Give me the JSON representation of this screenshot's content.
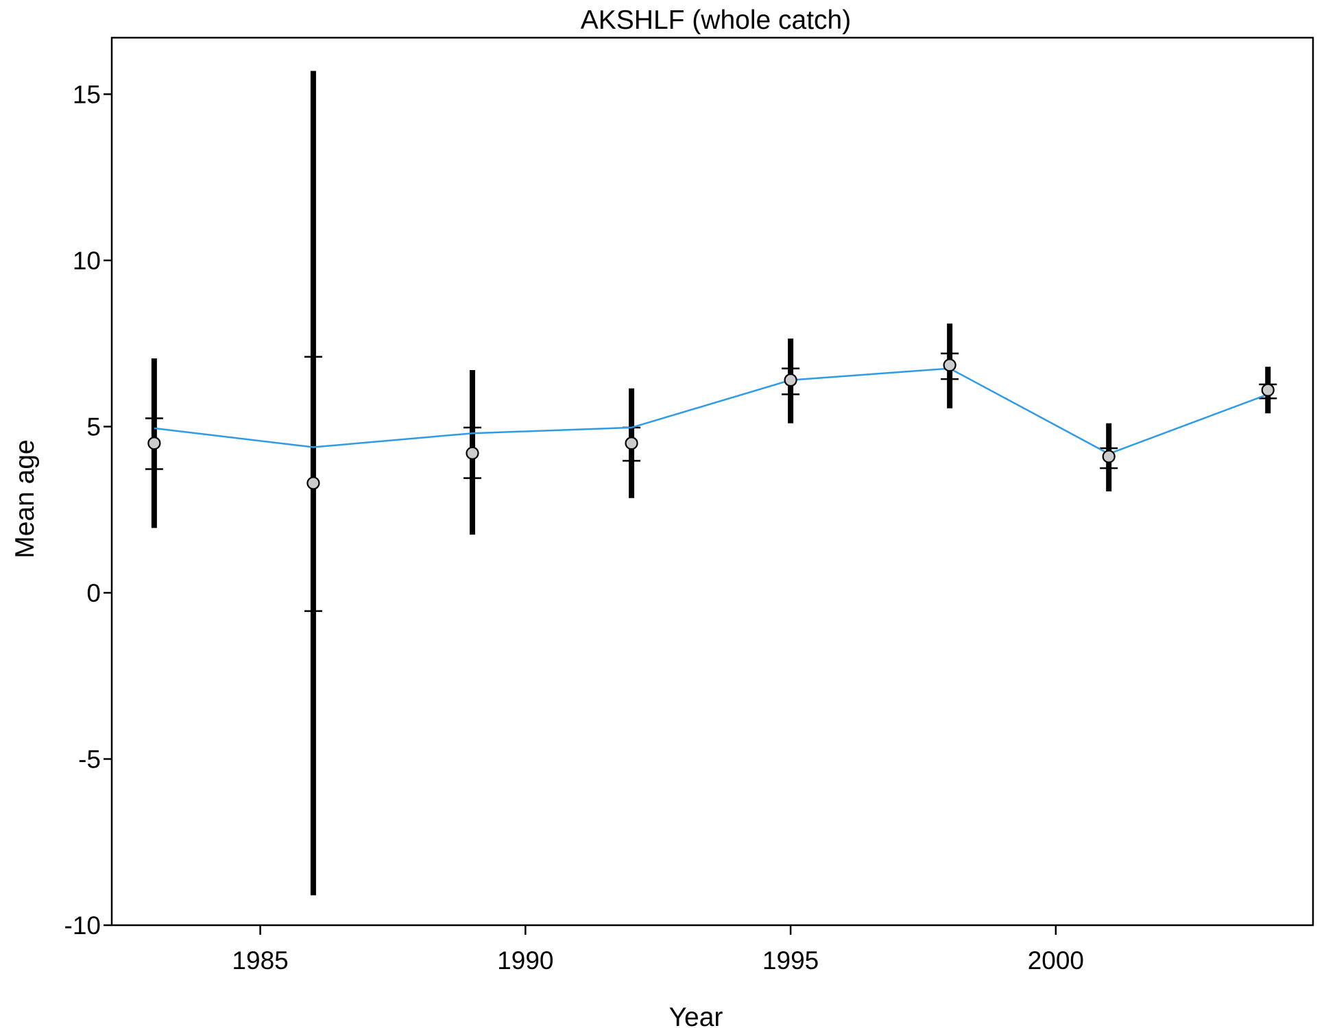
{
  "chart_data": {
    "type": "scatter",
    "title": "AKSHLF (whole catch)",
    "xlabel": "Year",
    "ylabel": "Mean age",
    "xlim": [
      1982.2,
      2004.85
    ],
    "ylim": [
      -10,
      16.7
    ],
    "x_ticks": [
      1985,
      1990,
      1995,
      2000
    ],
    "y_ticks": [
      15,
      10,
      5,
      0,
      -5,
      -10
    ],
    "y_tick_labels": [
      "15",
      "10",
      "5",
      "0",
      "-5",
      "-10"
    ],
    "grid": false,
    "series": [
      {
        "x": [
          1983,
          1986,
          1989,
          1992,
          1995,
          1998,
          2001,
          2004
        ],
        "observed": [
          4.5,
          3.3,
          4.2,
          4.5,
          6.4,
          6.85,
          4.1,
          6.1
        ],
        "expected": [
          4.95,
          4.38,
          4.8,
          4.97,
          6.4,
          6.75,
          4.18,
          5.97
        ],
        "ci_outer_low": [
          1.95,
          -9.1,
          1.75,
          2.85,
          5.1,
          5.55,
          3.05,
          5.4
        ],
        "ci_outer_high": [
          7.05,
          15.7,
          6.7,
          6.15,
          7.65,
          8.1,
          5.1,
          6.8
        ],
        "ci_inner_low": [
          3.72,
          -0.55,
          3.45,
          3.97,
          5.97,
          6.43,
          3.75,
          5.85
        ],
        "ci_inner_high": [
          5.25,
          7.1,
          4.97,
          4.97,
          6.75,
          7.2,
          4.35,
          6.27
        ]
      }
    ],
    "colors": {
      "expected_line": "#2e9be6",
      "observed_marker_fill": "#cccccc",
      "interval": "#000000"
    }
  }
}
